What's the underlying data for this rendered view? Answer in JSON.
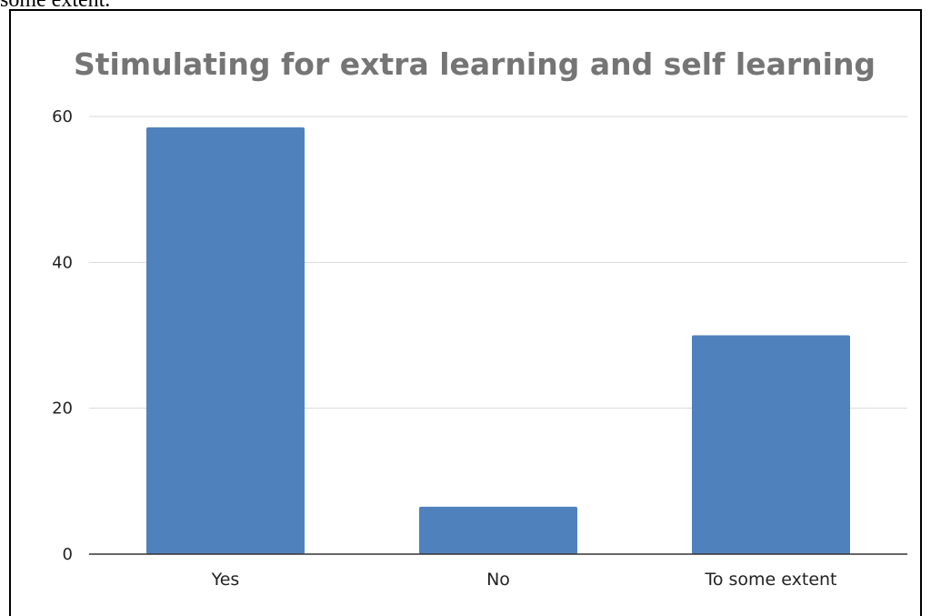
{
  "header_fragment": "some extent.",
  "chart_data": {
    "type": "bar",
    "title": "Stimulating  for extra learning and self learning",
    "categories": [
      "Yes",
      "No",
      "To some extent"
    ],
    "values": [
      58.5,
      6.5,
      30
    ],
    "xlabel": "",
    "ylabel": "",
    "ylim": [
      0,
      60
    ],
    "yticks": [
      "0",
      "20",
      "40",
      "60"
    ],
    "grid": true,
    "legend": "none",
    "bar_color": "#4F81BD",
    "grid_color": "#D9D9D9",
    "axis_color": "#333333",
    "title_color": "#757575"
  }
}
